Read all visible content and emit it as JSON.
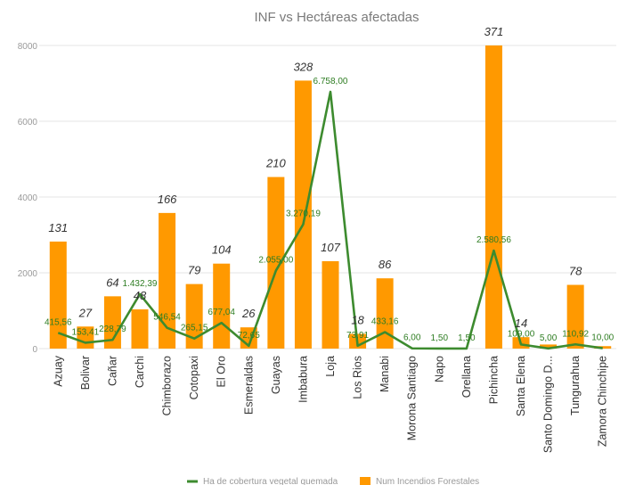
{
  "chart_data": {
    "type": "bar",
    "title": "INF vs Hectáreas afectadas",
    "categories": [
      "Azuay",
      "Bolivar",
      "Cañar",
      "Carchi",
      "Chimborazo",
      "Cotopaxi",
      "El Oro",
      "Esmeraldas",
      "Guayas",
      "Imbabura",
      "Loja",
      "Los Rios",
      "Manabi",
      "Morona Santiago",
      "Napo",
      "Orellana",
      "Pichincha",
      "Santa Elena",
      "Santo Domingo D...",
      "Tungurahua",
      "Zamora Chinchipe"
    ],
    "ylim": [
      0,
      8000
    ],
    "yticks": [
      "0",
      "2000",
      "4000",
      "6000",
      "8000"
    ],
    "ytick_values": [
      0,
      2000,
      4000,
      6000,
      8000
    ],
    "grid": true,
    "legend_position": "bottom",
    "series": [
      {
        "name": "Num Incendios Forestales",
        "kind": "bar",
        "color": "#ff9900",
        "values": [
          131,
          27,
          64,
          48,
          166,
          79,
          104,
          26,
          210,
          328,
          107,
          18,
          86,
          0,
          0,
          0,
          371,
          14,
          5,
          78,
          3
        ],
        "labels": [
          "131",
          "27",
          "64",
          "48",
          "166",
          "79",
          "104",
          "26",
          "210",
          "328",
          "107",
          "18",
          "86",
          "",
          "",
          "",
          "371",
          "14",
          "",
          "78",
          ""
        ]
      },
      {
        "name": "Ha de cobertura vegetal quemada",
        "kind": "line",
        "color": "#3d8b2f",
        "values": [
          415.56,
          153.41,
          228.79,
          1432.39,
          546.54,
          265.15,
          677.04,
          72.65,
          2055.0,
          3270.19,
          6758.0,
          73.91,
          433.16,
          6.0,
          1.5,
          1.5,
          2580.56,
          109.0,
          5.0,
          110.92,
          10.0
        ],
        "labels": [
          "415,56",
          "153,41",
          "228,79",
          "1.432,39",
          "546,54",
          "265,15",
          "677,04",
          "72,65",
          "2.055,00",
          "3.270,19",
          "6.758,00",
          "73,91",
          "433,16",
          "6,00",
          "1,50",
          "1,50",
          "2.580,56",
          "109,00",
          "5,00",
          "110,92",
          "10,00"
        ]
      }
    ]
  }
}
